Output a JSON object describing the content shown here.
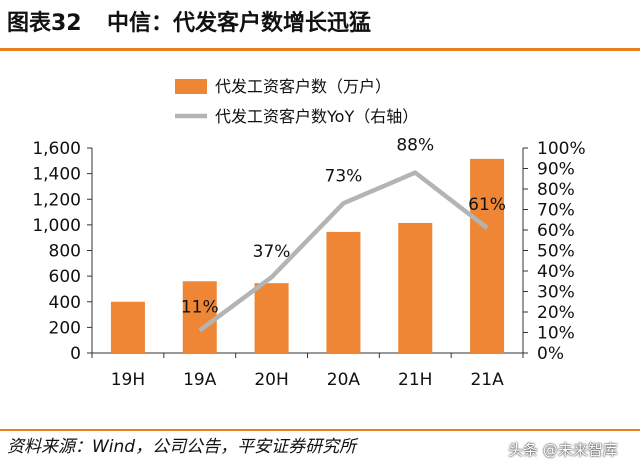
{
  "header": {
    "fig_no": "图表32",
    "title": "中信：代发客户数增长迅猛"
  },
  "footer": {
    "source": "资料来源：Wind，公司公告，平安证券研究所",
    "watermark": "头条 @未来智库"
  },
  "colors": {
    "bar": "#ee8635",
    "line": "#b4b4b4",
    "rule": "#e8801f"
  },
  "chart_data": {
    "type": "bar",
    "categories": [
      "19H",
      "19A",
      "20H",
      "20A",
      "21H",
      "21A"
    ],
    "series": [
      {
        "name": "代发工资客户数（万户）",
        "type": "bar",
        "axis": "left",
        "values": [
          400,
          560,
          545,
          945,
          1015,
          1515
        ]
      },
      {
        "name": "代发工资客户数YoY（右轴）",
        "type": "line",
        "axis": "right",
        "values": [
          null,
          0.11,
          0.37,
          0.73,
          0.88,
          0.61
        ],
        "labels": [
          "",
          "11%",
          "37%",
          "73%",
          "88%",
          "61%"
        ]
      }
    ],
    "ylim_left": [
      0,
      1600
    ],
    "yticks_left": [
      0,
      200,
      400,
      600,
      800,
      1000,
      1200,
      1400,
      1600
    ],
    "ytick_labels_left": [
      "0",
      "200",
      "400",
      "600",
      "800",
      "1,000",
      "1,200",
      "1,400",
      "1,600"
    ],
    "ylim_right": [
      0,
      1
    ],
    "yticks_right": [
      0,
      0.1,
      0.2,
      0.3,
      0.4,
      0.5,
      0.6,
      0.7,
      0.8,
      0.9,
      1.0
    ],
    "ytick_labels_right": [
      "0%",
      "10%",
      "20%",
      "30%",
      "40%",
      "50%",
      "60%",
      "70%",
      "80%",
      "90%",
      "100%"
    ],
    "legend_position": "top-center",
    "grid": false
  }
}
